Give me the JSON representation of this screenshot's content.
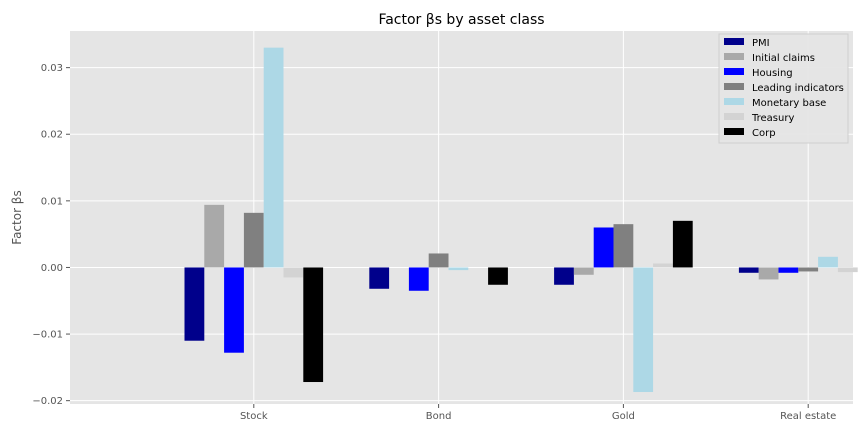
{
  "chart_data": {
    "type": "bar",
    "title": "Factor βs by asset class",
    "xlabel": "",
    "ylabel": "Factor βs",
    "categories": [
      "Stock",
      "Bond",
      "Gold",
      "Real estate"
    ],
    "ylim": [
      -0.0205,
      0.0355
    ],
    "yticks": [
      -0.02,
      -0.01,
      0.0,
      0.01,
      0.02,
      0.03
    ],
    "ytick_labels": [
      "−0.02",
      "−0.01",
      "0.00",
      "0.01",
      "0.02",
      "0.03"
    ],
    "grid": true,
    "legend_position": "top-right",
    "series": [
      {
        "name": "PMI",
        "color": "#00008b",
        "values": [
          -0.011,
          -0.0032,
          -0.0026,
          -0.0008
        ]
      },
      {
        "name": "Initial claims",
        "color": "#a9a9a9",
        "values": [
          0.0094,
          0.0,
          -0.0011,
          -0.0018
        ]
      },
      {
        "name": "Housing",
        "color": "#0000ff",
        "values": [
          -0.0128,
          -0.0035,
          0.006,
          -0.0008
        ]
      },
      {
        "name": "Leading indicators",
        "color": "#808080",
        "values": [
          0.0082,
          0.0021,
          0.0065,
          -0.0006
        ]
      },
      {
        "name": "Monetary base",
        "color": "#add8e6",
        "values": [
          0.033,
          -0.0004,
          -0.0187,
          0.0016
        ]
      },
      {
        "name": "Treasury",
        "color": "#d3d3d3",
        "values": [
          -0.0015,
          0.0,
          0.0006,
          -0.0007
        ]
      },
      {
        "name": "Corp",
        "color": "#000000",
        "values": [
          -0.0172,
          -0.0026,
          0.007,
          0.0
        ]
      }
    ]
  }
}
